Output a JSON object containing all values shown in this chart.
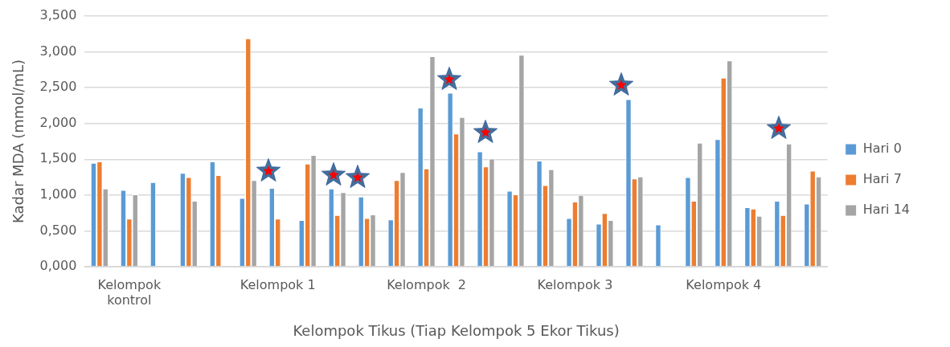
{
  "chart_data": {
    "type": "bar",
    "xlabel": "Kelompok Tikus (Tiap Kelompok 5 Ekor Tikus)",
    "ylabel": "Kadar MDA (mmol/mL)",
    "categories": [
      null,
      "Kelompok kontrol",
      null,
      null,
      null,
      null,
      "Kelompok 1",
      null,
      null,
      null,
      null,
      "Kelompok  2",
      null,
      null,
      null,
      null,
      "Kelompok 3",
      null,
      null,
      null,
      null,
      "Kelompok 4",
      null,
      null,
      null
    ],
    "series": [
      {
        "name": "Hari 0",
        "color": "#5b9bd5",
        "values": [
          1.45,
          1.07,
          1.18,
          1.31,
          1.47,
          0.96,
          1.1,
          0.65,
          1.09,
          0.98,
          0.66,
          2.22,
          2.43,
          1.61,
          1.06,
          1.48,
          0.68,
          0.6,
          2.34,
          0.59,
          1.25,
          1.78,
          0.83,
          0.92,
          0.88
        ]
      },
      {
        "name": "Hari 7",
        "color": "#ed7d31",
        "values": [
          1.47,
          0.67,
          null,
          1.25,
          1.28,
          3.19,
          0.67,
          1.44,
          0.72,
          0.68,
          1.21,
          1.37,
          1.86,
          1.4,
          1.01,
          1.14,
          0.91,
          0.75,
          1.23,
          null,
          0.92,
          2.64,
          0.81,
          0.72,
          1.34
        ]
      },
      {
        "name": "Hari 14",
        "color": "#a5a5a5",
        "values": [
          1.09,
          1.01,
          null,
          0.92,
          null,
          1.21,
          null,
          1.56,
          1.04,
          0.73,
          1.32,
          2.94,
          2.09,
          1.51,
          2.96,
          1.36,
          1.0,
          0.65,
          1.26,
          null,
          1.73,
          2.88,
          0.71,
          1.72,
          1.26
        ]
      }
    ],
    "ylim": [
      0,
      3.5
    ],
    "yticks": [
      {
        "value": 0,
        "label": "0,000"
      },
      {
        "value": 0.5,
        "label": "0,500"
      },
      {
        "value": 1,
        "label": "1,000"
      },
      {
        "value": 1.5,
        "label": "1,500"
      },
      {
        "value": 2,
        "label": "2,000"
      },
      {
        "value": 2.5,
        "label": "2,500"
      },
      {
        "value": 3,
        "label": "3,000"
      },
      {
        "value": 3.5,
        "label": "3,500"
      }
    ],
    "grid": "y",
    "legend": "right"
  }
}
